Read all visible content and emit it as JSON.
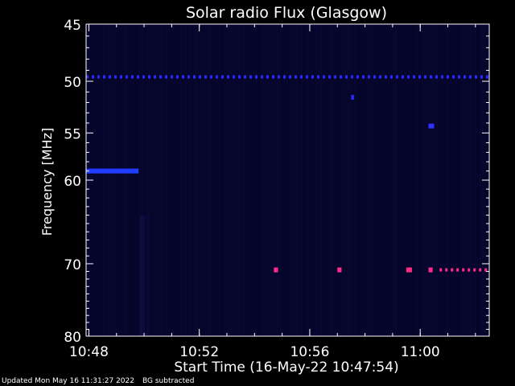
{
  "chart_data": {
    "type": "heatmap",
    "title": "Solar radio Flux (Glasgow)",
    "xlabel": "Start Time (16-May-22 10:47:54)",
    "ylabel": "Frequency [MHz]",
    "x_ticks": [
      "10:48",
      "10:52",
      "10:56",
      "11:00"
    ],
    "x_tick_minutes": [
      0.1,
      4.1,
      8.1,
      12.1
    ],
    "xlim_minutes": [
      0,
      14.6
    ],
    "y_ticks": [
      45,
      50,
      55,
      60,
      70,
      80
    ],
    "ylim": [
      45,
      80
    ],
    "y_scale": "log",
    "background_color": "#05052a",
    "features": [
      {
        "name": "interference-line-50MHz",
        "freq_mhz": 49.6,
        "start_min": 0,
        "end_min": 14.6,
        "color": "#2a2aff",
        "style": "dashed"
      },
      {
        "name": "band-59MHz",
        "freq_mhz": 59.0,
        "start_min": 0,
        "end_min": 1.9,
        "color": "#1f3cff",
        "style": "solid"
      },
      {
        "name": "band-70.8MHz",
        "freq_mhz": 70.8,
        "start_min": 12.8,
        "end_min": 14.6,
        "color": "#ff2a8a",
        "style": "dashed"
      },
      {
        "name": "spot-51.5MHz",
        "freq_mhz": 51.5,
        "start_min": 9.6,
        "end_min": 9.7,
        "color": "#2a2aff",
        "style": "solid"
      },
      {
        "name": "spot-54.3MHz",
        "freq_mhz": 54.3,
        "start_min": 12.4,
        "end_min": 12.6,
        "color": "#3030ff",
        "style": "solid"
      },
      {
        "name": "spot-70.8MHz-a",
        "freq_mhz": 70.8,
        "start_min": 6.8,
        "end_min": 6.95,
        "color": "#ff2a8a",
        "style": "solid"
      },
      {
        "name": "spot-70.8MHz-b",
        "freq_mhz": 70.8,
        "start_min": 9.1,
        "end_min": 9.25,
        "color": "#ff2a8a",
        "style": "solid"
      },
      {
        "name": "spot-70.8MHz-c",
        "freq_mhz": 70.8,
        "start_min": 11.6,
        "end_min": 11.8,
        "color": "#ff2a8a",
        "style": "solid"
      },
      {
        "name": "spot-70.8MHz-d",
        "freq_mhz": 70.8,
        "start_min": 12.4,
        "end_min": 12.55,
        "color": "#ff2a8a",
        "style": "solid"
      }
    ]
  },
  "footer": {
    "updated": "Updated Mon May 16 11:31:27 2022",
    "note": "BG subtracted"
  }
}
